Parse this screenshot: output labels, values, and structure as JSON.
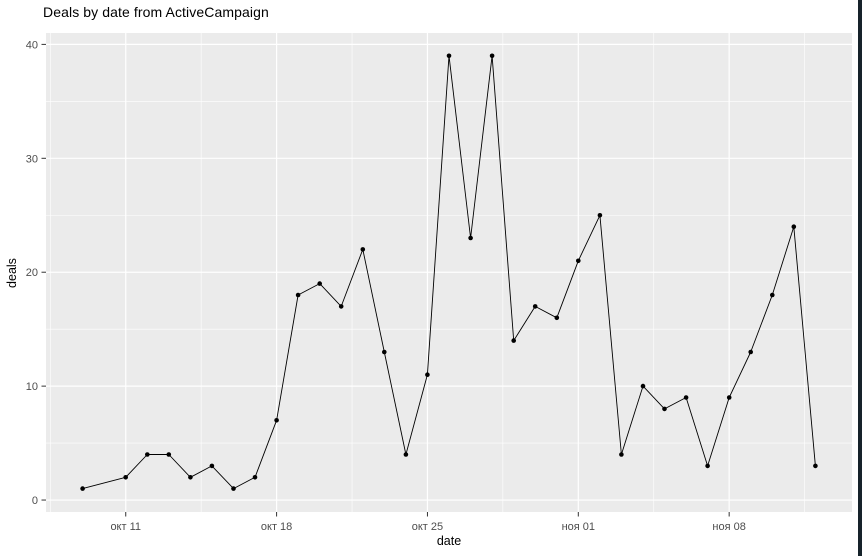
{
  "window": {
    "right_border_color": "#16222a"
  },
  "chart_data": {
    "type": "line",
    "title": "Deals by date from ActiveCampaign",
    "xlabel": "date",
    "ylabel": "deals",
    "legend": "none",
    "grid": "on",
    "x_axis": {
      "unit": "days (day 0 = окт 09)",
      "major_ticks": [
        {
          "label": "окт 11",
          "day": 2
        },
        {
          "label": "окт 18",
          "day": 9
        },
        {
          "label": "окт 25",
          "day": 16
        },
        {
          "label": "ноя 01",
          "day": 23
        },
        {
          "label": "ноя 08",
          "day": 30
        }
      ],
      "minor_tick_days": [
        -1.5,
        5.5,
        12.5,
        19.5,
        26.5,
        33.5
      ],
      "domain_days": [
        -1.7,
        35.7
      ]
    },
    "y_axis": {
      "major_ticks": [
        0,
        10,
        20,
        30,
        40
      ],
      "minor_ticks": [
        5,
        15,
        25,
        35
      ],
      "domain": [
        -1.05,
        41.0
      ]
    },
    "points": [
      {
        "date": "окт 09",
        "day": 0,
        "value": 1
      },
      {
        "date": "окт 11",
        "day": 2,
        "value": 2
      },
      {
        "date": "окт 12",
        "day": 3,
        "value": 4
      },
      {
        "date": "окт 13",
        "day": 4,
        "value": 4
      },
      {
        "date": "окт 14",
        "day": 5,
        "value": 2
      },
      {
        "date": "окт 15",
        "day": 6,
        "value": 3
      },
      {
        "date": "окт 16",
        "day": 7,
        "value": 1
      },
      {
        "date": "окт 17",
        "day": 8,
        "value": 2
      },
      {
        "date": "окт 18",
        "day": 9,
        "value": 7
      },
      {
        "date": "окт 19",
        "day": 10,
        "value": 18
      },
      {
        "date": "окт 20",
        "day": 11,
        "value": 19
      },
      {
        "date": "окт 21",
        "day": 12,
        "value": 17
      },
      {
        "date": "окт 22",
        "day": 13,
        "value": 22
      },
      {
        "date": "окт 23",
        "day": 14,
        "value": 13
      },
      {
        "date": "окт 24",
        "day": 15,
        "value": 4
      },
      {
        "date": "окт 25",
        "day": 16,
        "value": 11
      },
      {
        "date": "окт 26",
        "day": 17,
        "value": 39
      },
      {
        "date": "окт 27",
        "day": 18,
        "value": 23
      },
      {
        "date": "окт 28",
        "day": 19,
        "value": 39
      },
      {
        "date": "окт 29",
        "day": 20,
        "value": 14
      },
      {
        "date": "окт 30",
        "day": 21,
        "value": 17
      },
      {
        "date": "окт 31",
        "day": 22,
        "value": 16
      },
      {
        "date": "ноя 01",
        "day": 23,
        "value": 21
      },
      {
        "date": "ноя 02",
        "day": 24,
        "value": 25
      },
      {
        "date": "ноя 03",
        "day": 25,
        "value": 4
      },
      {
        "date": "ноя 04",
        "day": 26,
        "value": 10
      },
      {
        "date": "ноя 05",
        "day": 27,
        "value": 8
      },
      {
        "date": "ноя 06",
        "day": 28,
        "value": 9
      },
      {
        "date": "ноя 07",
        "day": 29,
        "value": 3
      },
      {
        "date": "ноя 08",
        "day": 30,
        "value": 9
      },
      {
        "date": "ноя 09",
        "day": 31,
        "value": 13
      },
      {
        "date": "ноя 10",
        "day": 32,
        "value": 18
      },
      {
        "date": "ноя 11",
        "day": 33,
        "value": 24
      },
      {
        "date": "ноя 12",
        "day": 34,
        "value": 3
      }
    ],
    "style": {
      "panel_bg": "#EBEBEB",
      "grid_color": "#FFFFFF",
      "axis_text_color": "#4D4D4D",
      "tick_mark_color": "#333333",
      "series_color": "#000000",
      "background": "#FFFFFF"
    }
  }
}
